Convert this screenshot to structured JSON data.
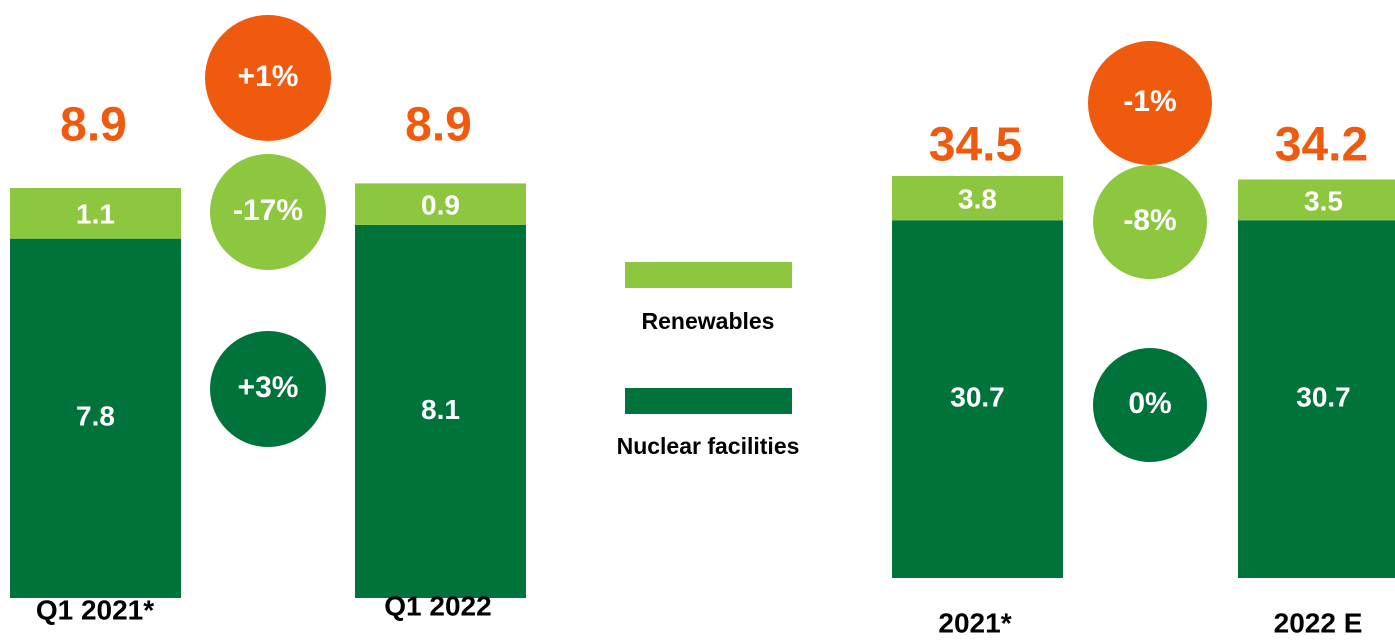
{
  "chart_data": [
    {
      "type": "stacked-bar",
      "categories": [
        "Q1 2021*",
        "Q1 2022"
      ],
      "series": [
        {
          "name": "Nuclear facilities",
          "color": "#00733a",
          "values": [
            7.8,
            8.1
          ]
        },
        {
          "name": "Renewables",
          "color": "#8dc63f",
          "values": [
            1.1,
            0.9
          ]
        }
      ],
      "totals": [
        8.9,
        8.9
      ],
      "total_color": "#f05a0f",
      "changes": {
        "total": "+1%",
        "series": [
          "+3%",
          "-17%"
        ]
      }
    },
    {
      "type": "stacked-bar",
      "categories": [
        "2021*",
        "2022 E"
      ],
      "series": [
        {
          "color": "#00733a",
          "values": [
            30.7,
            30.7
          ]
        },
        {
          "color": "#8dc63f",
          "values": [
            3.8,
            3.5
          ]
        }
      ],
      "totals": [
        34.5,
        34.2
      ],
      "total_color": "#f05a0f",
      "changes": {
        "total": "-1%",
        "series": [
          "0%",
          "-8%"
        ]
      }
    }
  ]
}
